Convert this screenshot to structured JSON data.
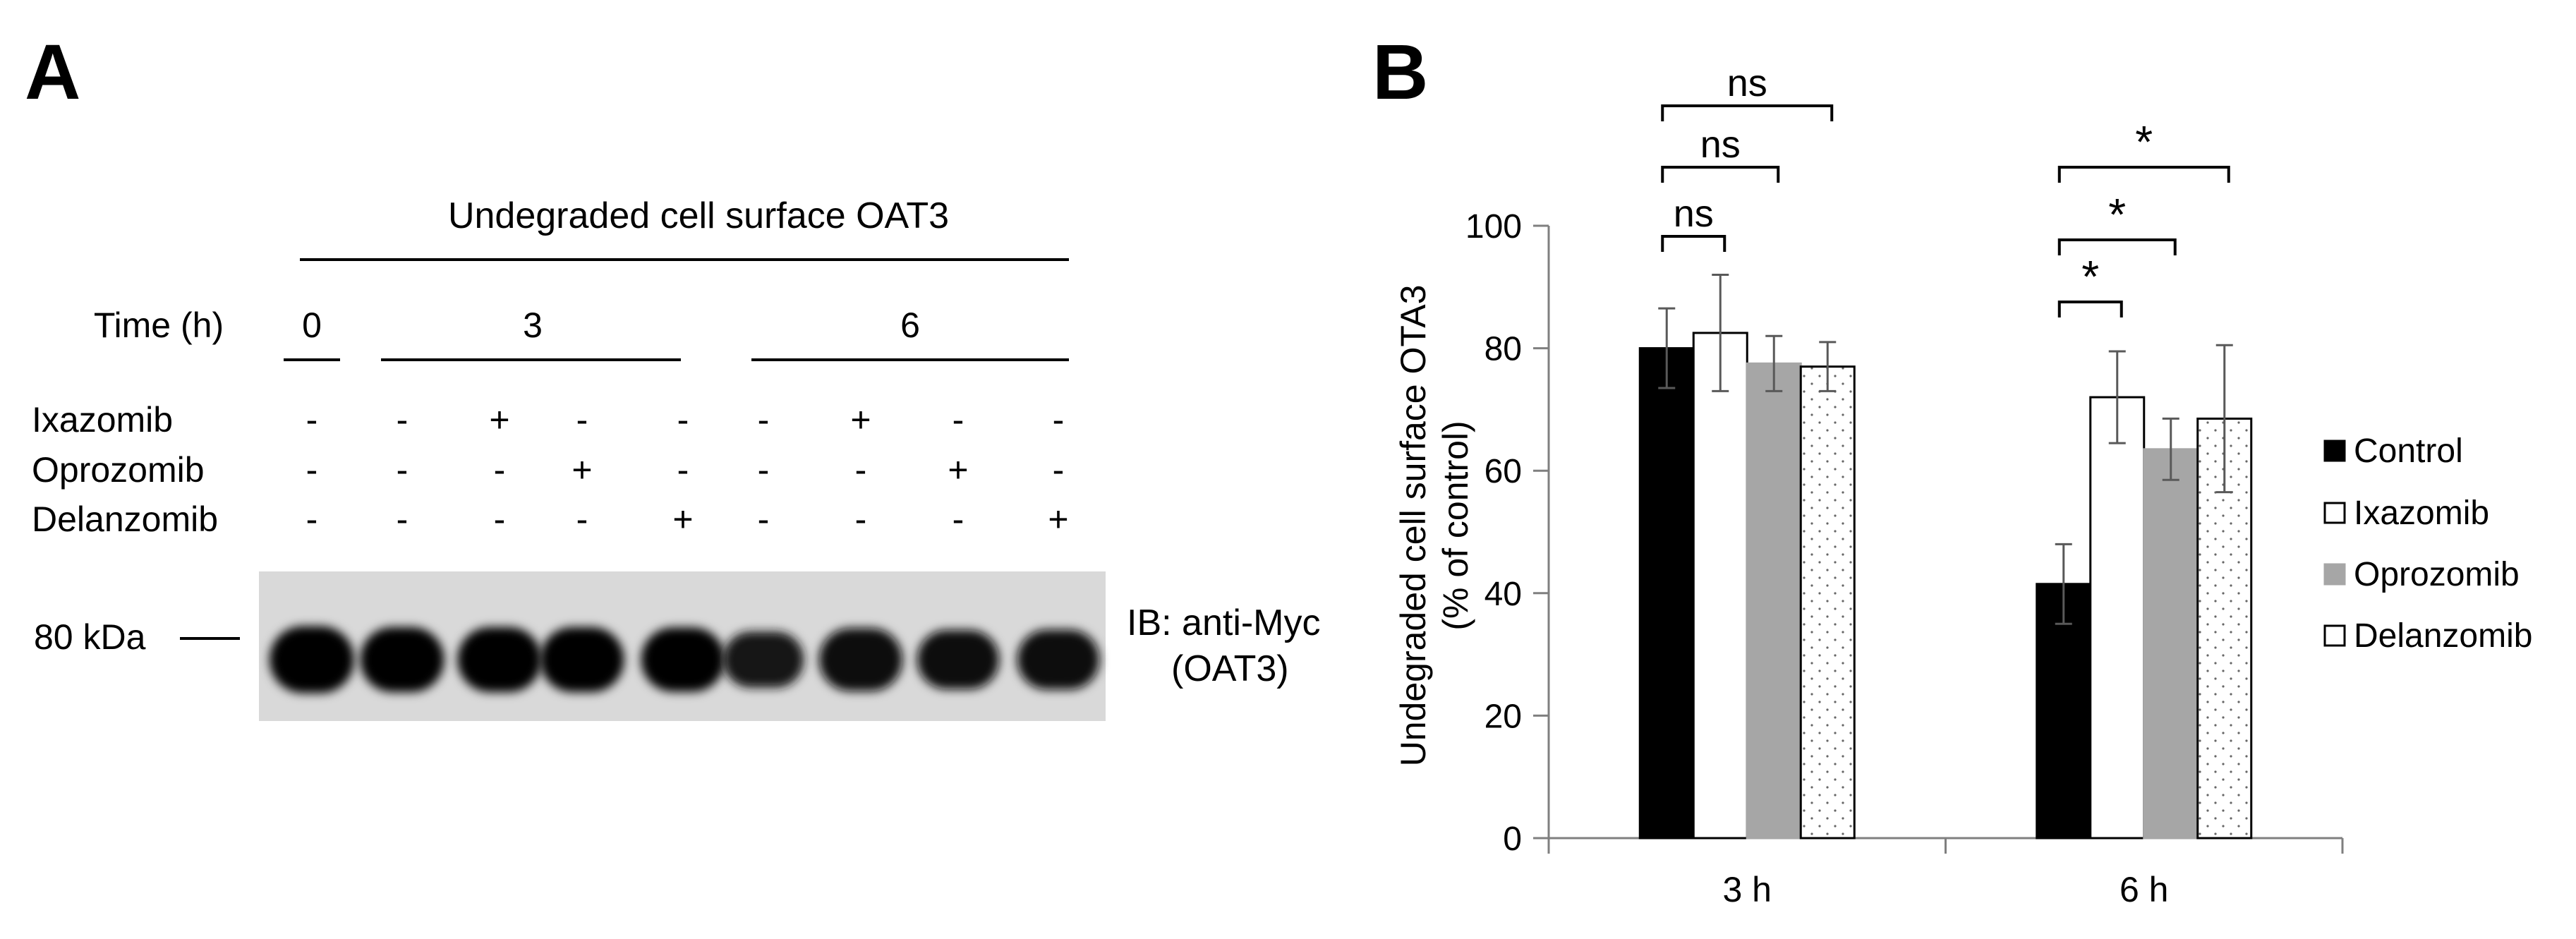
{
  "panel_a": {
    "letter": "A",
    "header": "Undegraded cell surface OAT3",
    "time_label": "Time (h)",
    "time_groups": [
      "0",
      "3",
      "6"
    ],
    "rows": [
      {
        "name": "Ixazomib",
        "signs": [
          "-",
          "-",
          "+",
          "-",
          "-",
          "-",
          "+",
          "-",
          "-"
        ]
      },
      {
        "name": "Oprozomib",
        "signs": [
          "-",
          "-",
          "-",
          "+",
          "-",
          "-",
          "-",
          "+",
          "-"
        ]
      },
      {
        "name": "Delanzomib",
        "signs": [
          "-",
          "-",
          "-",
          "-",
          "+",
          "-",
          "-",
          "-",
          "+"
        ]
      }
    ],
    "marker": "80 kDa",
    "ib_line1": "IB: anti-Myc",
    "ib_line2": "(OAT3)",
    "band_intensity": [
      1.0,
      0.95,
      0.95,
      0.95,
      0.93,
      0.72,
      0.9,
      0.8,
      0.82
    ]
  },
  "panel_b": {
    "letter": "B",
    "colors": {
      "control": "#000000",
      "ixazomib": "#ffffff",
      "oprozomib": "#a6a6a6",
      "delanzomib": "#ffffff"
    },
    "significance_3h": [
      "ns",
      "ns",
      "ns"
    ],
    "significance_6h": [
      "*",
      "*",
      "*"
    ]
  },
  "chart_data": {
    "type": "bar",
    "title": "",
    "categories": [
      "3 h",
      "6 h"
    ],
    "ylabel_line1": "Undegraded  cell surface OTA3",
    "ylabel_line2": "(% of control)",
    "xlabel": "",
    "ylim": [
      0,
      100
    ],
    "yticks": [
      "0",
      "20",
      "40",
      "60",
      "80",
      "100"
    ],
    "legend_position": "right",
    "series": [
      {
        "name": "Control",
        "values": [
          80,
          41.5
        ],
        "errors": [
          6.5,
          6.5
        ]
      },
      {
        "name": "Ixazomib",
        "values": [
          82.5,
          72
        ],
        "errors": [
          9.5,
          7.5
        ]
      },
      {
        "name": "Oprozomib",
        "values": [
          77.5,
          63.5
        ],
        "errors": [
          4.5,
          5
        ]
      },
      {
        "name": "Delanzomib",
        "values": [
          77,
          68.5
        ],
        "errors": [
          4,
          12
        ]
      }
    ]
  }
}
